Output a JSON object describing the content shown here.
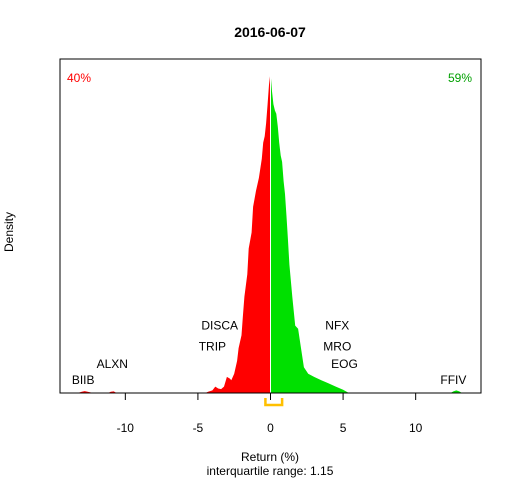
{
  "chart_data": {
    "type": "area",
    "title": "2016-06-07",
    "xlabel": "Return (%)",
    "subtitle": "interquartile range: 1.15",
    "ylabel": "Density",
    "xlim": [
      -14.5,
      14.5
    ],
    "x_ticks": [
      -10,
      -5,
      0,
      5,
      10
    ],
    "x_tick_labels": [
      "-10",
      "-5",
      "0",
      "5",
      "10"
    ],
    "pct_negative": "40%",
    "pct_positive": "59%",
    "colors": {
      "negative": "#ff0000",
      "positive": "#00e000",
      "iqr_bracket": "#ffc000",
      "baseline": "#bebebe"
    },
    "iqr": [
      -0.35,
      0.8
    ],
    "density_negative": {
      "x": [
        -13.3,
        -13.0,
        -12.8,
        -12.6,
        -12.2,
        -11.2,
        -11.0,
        -10.8,
        -10.6,
        -4.5,
        -4.3,
        -4.0,
        -3.8,
        -3.6,
        -3.4,
        -3.2,
        -3.0,
        -2.8,
        -2.7,
        -2.5,
        -2.3,
        -2.2,
        -2.0,
        -1.9,
        -1.8,
        -1.6,
        -1.5,
        -1.3,
        -1.2,
        -1.0,
        -0.8,
        -0.6,
        -0.5,
        -0.4,
        -0.3,
        -0.2,
        -0.1,
        0.0
      ],
      "y": [
        0,
        0.004,
        0.006,
        0.004,
        0,
        0,
        0.004,
        0.005,
        0,
        0,
        0.004,
        0.008,
        0.02,
        0.014,
        0.012,
        0.02,
        0.05,
        0.045,
        0.04,
        0.06,
        0.1,
        0.14,
        0.18,
        0.24,
        0.3,
        0.37,
        0.45,
        0.5,
        0.58,
        0.63,
        0.67,
        0.73,
        0.78,
        0.8,
        0.84,
        0.9,
        0.96,
        1.0
      ]
    },
    "density_positive": {
      "x": [
        0.0,
        0.1,
        0.2,
        0.3,
        0.4,
        0.5,
        0.6,
        0.7,
        0.8,
        0.9,
        1.0,
        1.1,
        1.2,
        1.3,
        1.5,
        1.7,
        1.9,
        2.1,
        2.3,
        2.6,
        3.0,
        3.5,
        4.0,
        4.5,
        5.0,
        5.4,
        12.4,
        12.6,
        12.8,
        13.0,
        13.2
      ],
      "y": [
        1.0,
        0.94,
        0.9,
        0.88,
        0.87,
        0.83,
        0.78,
        0.74,
        0.72,
        0.66,
        0.62,
        0.55,
        0.48,
        0.4,
        0.3,
        0.21,
        0.2,
        0.14,
        0.08,
        0.06,
        0.05,
        0.04,
        0.03,
        0.02,
        0.01,
        0,
        0,
        0.005,
        0.008,
        0.005,
        0
      ]
    },
    "annotations": [
      {
        "text": "BIIB",
        "x": -12.9,
        "level": 0.04
      },
      {
        "text": "ALXN",
        "x": -10.9,
        "level": 0.09
      },
      {
        "text": "DISCA",
        "x": -3.5,
        "level": 0.21
      },
      {
        "text": "TRIP",
        "x": -4.0,
        "level": 0.145
      },
      {
        "text": "NFX",
        "x": 4.6,
        "level": 0.21
      },
      {
        "text": "MRO",
        "x": 4.6,
        "level": 0.145
      },
      {
        "text": "EOG",
        "x": 5.1,
        "level": 0.09
      },
      {
        "text": "FFIV",
        "x": 12.6,
        "level": 0.04
      }
    ]
  }
}
